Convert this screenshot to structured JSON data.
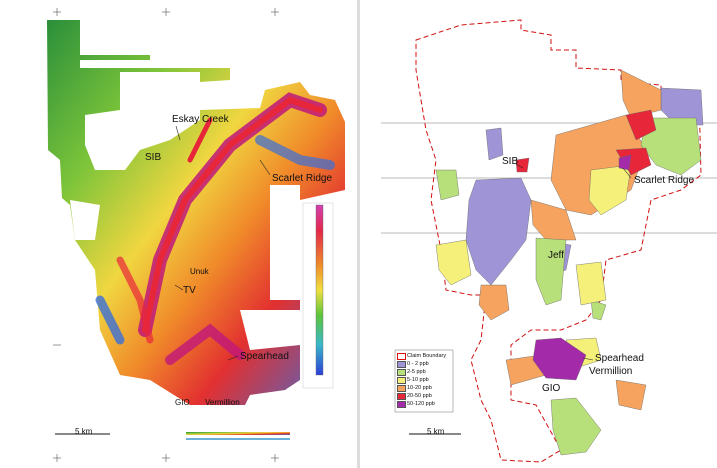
{
  "left_map": {
    "labels": {
      "eskay_creek": "Eskay Creek",
      "sib": "SIB",
      "scarlet_ridge": "Scarlet Ridge",
      "tv": "TV",
      "spearhead": "Spearhead",
      "gio": "GIO",
      "vermillion": "Vermillion",
      "unuk": "Unuk"
    },
    "scale_bar": "5 km"
  },
  "right_map": {
    "labels": {
      "sib": "SIB",
      "scarlet_ridge": "Scarlet Ridge",
      "jeff": "Jeff",
      "spearhead": "Spearhead",
      "vermillion": "Vermillion",
      "gio": "GIO"
    },
    "legend": [
      {
        "label": "Claim Boundary",
        "color": "#ffffff",
        "outline": "#d11"
      },
      {
        "label": "0 - 2 ppb",
        "color": "#9f95d6"
      },
      {
        "label": "2-5 ppb",
        "color": "#b8e07a"
      },
      {
        "label": "5-10 ppb",
        "color": "#f5f07a"
      },
      {
        "label": "10-20 ppb",
        "color": "#f5a35e"
      },
      {
        "label": "20-50 ppb",
        "color": "#e8263a"
      },
      {
        "label": "50-120 ppb",
        "color": "#a32aa8"
      }
    ],
    "scale_bar": "5 km"
  },
  "colors": {
    "claim": "#d11111",
    "purple": "#9f95d6",
    "green": "#b8e07a",
    "yellow": "#f5f07a",
    "orange": "#f5a35e",
    "red": "#e8263a",
    "magenta": "#a32aa8"
  }
}
